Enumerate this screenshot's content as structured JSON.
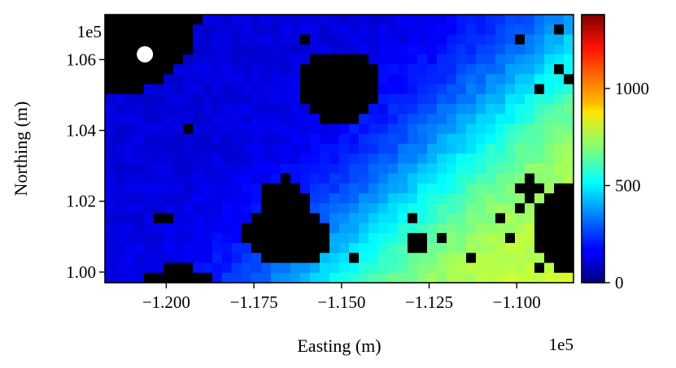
{
  "chart_data": {
    "type": "heatmap",
    "xlabel": "Easting (m)",
    "ylabel": "Northing (m)",
    "x_offset_label": "1e5",
    "y_offset_label": "1e5",
    "xlim": [
      -1.2175,
      -1.0838
    ],
    "ylim": [
      0.997,
      1.0727
    ],
    "x_ticks": [
      -1.2,
      -1.175,
      -1.15,
      -1.125,
      -1.1
    ],
    "x_tick_labels": [
      "−1.200",
      "−1.175",
      "−1.150",
      "−1.125",
      "−1.100"
    ],
    "y_ticks": [
      1.0,
      1.02,
      1.04,
      1.06
    ],
    "y_tick_labels": [
      "1.00",
      "1.02",
      "1.04",
      "1.06"
    ],
    "colorbar": {
      "colormap": "jet",
      "vmin": 0,
      "vmax": 1380,
      "ticks": [
        0,
        500,
        1000
      ],
      "tick_labels": [
        "0",
        "500",
        "1000"
      ]
    },
    "grid": false,
    "value_trend": "values increase from about 100 in the north-west to about 800 in the south-east; black cells mark no-data patches",
    "marker": {
      "x": -1.2061,
      "y": 1.0615,
      "color": "#ffffff"
    }
  }
}
